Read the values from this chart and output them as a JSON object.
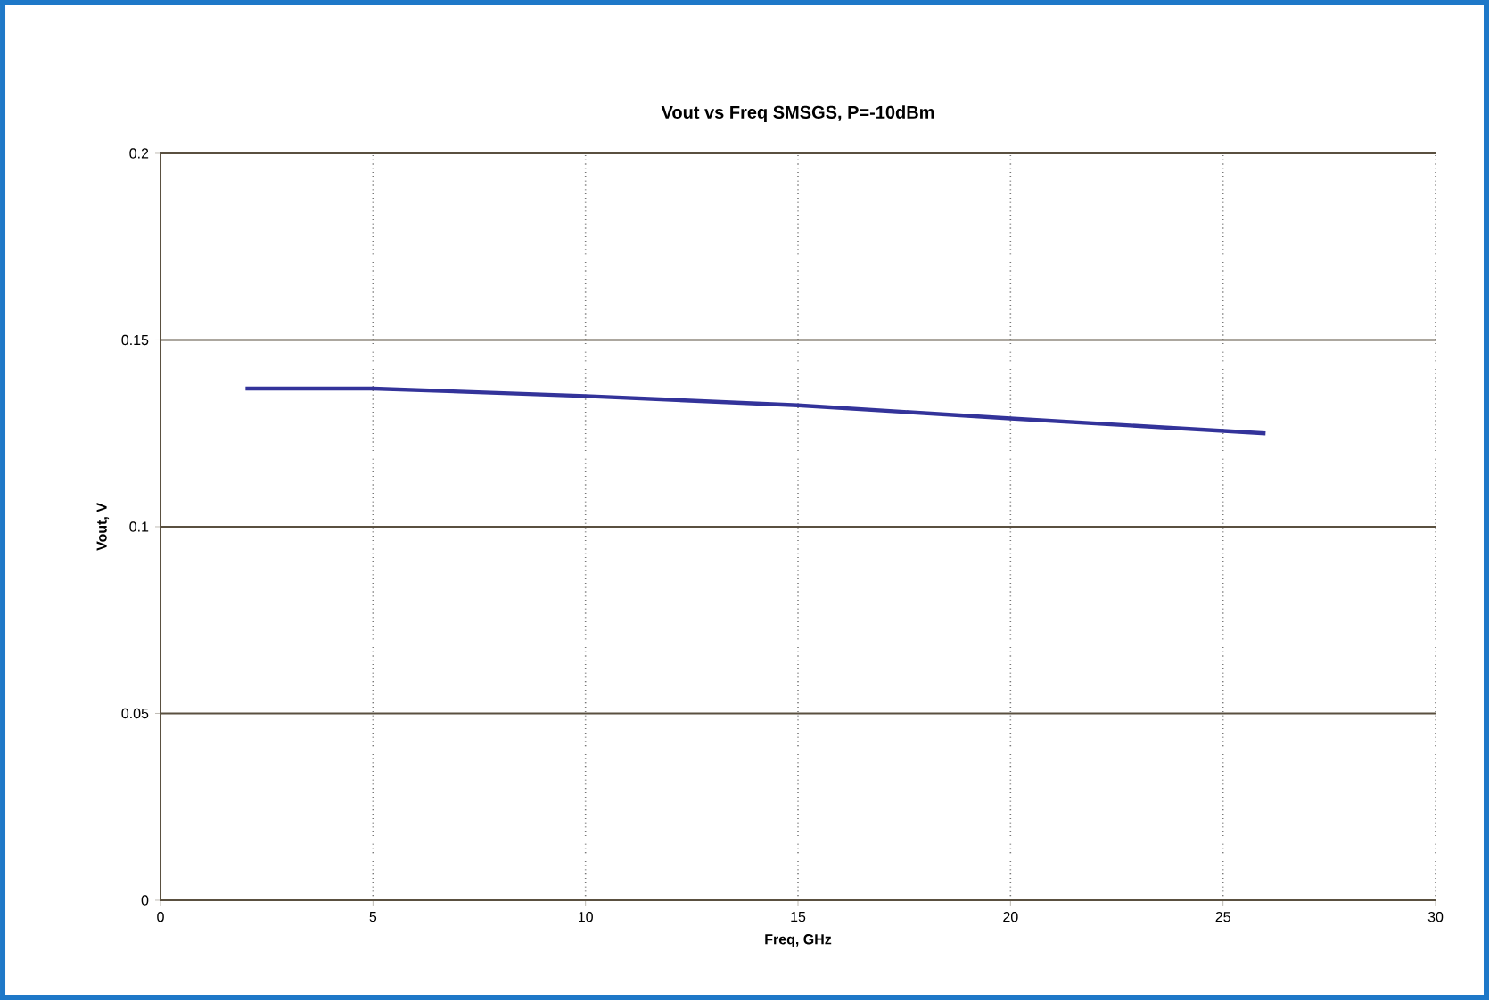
{
  "chart_data": {
    "type": "line",
    "title": "Vout vs Freq SMSGS, P=-10dBm",
    "xlabel": "Freq, GHz",
    "ylabel": "Vout, V",
    "x": [
      2,
      5,
      10,
      15,
      20,
      26
    ],
    "series": [
      {
        "color": "#33339a",
        "values": [
          0.137,
          0.137,
          0.135,
          0.1325,
          0.129,
          0.125
        ]
      }
    ],
    "xlim": [
      0,
      30
    ],
    "xticks": [
      0,
      5,
      10,
      15,
      20,
      25,
      30
    ],
    "ylim": [
      0,
      0.2
    ],
    "yticks": [
      0,
      0.05,
      0.1,
      0.15,
      0.2
    ],
    "grid": true,
    "legend": false,
    "marker": "none",
    "line_style": "solid"
  }
}
